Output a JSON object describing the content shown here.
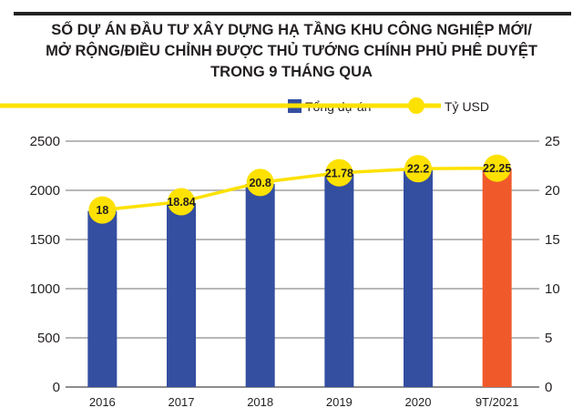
{
  "chart_data": {
    "type": "bar",
    "title_lines": [
      "SỐ DỰ ÁN ĐẦU TƯ XÂY DỰNG HẠ TẦNG KHU CÔNG NGHIỆP MỚI/",
      "MỞ RỘNG/ĐIỀU CHỈNH ĐƯỢC THỦ TƯỚNG CHÍNH PHỦ PHÊ DUYỆT",
      "TRONG 9 THÁNG QUA"
    ],
    "categories": [
      "2016",
      "2017",
      "2018",
      "2019",
      "2020",
      "9T/2021"
    ],
    "series": [
      {
        "name": "Tổng dự án",
        "type": "bar",
        "axis": "left",
        "values": [
          1790,
          1865,
          2065,
          2165,
          2205,
          2220
        ],
        "color": "#344ea0",
        "highlight_color": "#f05a2b",
        "highlight_index": 5
      },
      {
        "name": "Tỷ USD",
        "type": "line",
        "axis": "right",
        "values": [
          18,
          18.84,
          20.8,
          21.78,
          22.2,
          22.25
        ],
        "labels": [
          "18",
          "18.84",
          "20.8",
          "21.78",
          "22.2",
          "22.25"
        ],
        "color": "#fde100"
      }
    ],
    "ylim_left": [
      0,
      2500
    ],
    "yticks_left": [
      "0",
      "500",
      "1000",
      "1500",
      "2000",
      "2500"
    ],
    "ylim_right": [
      0,
      25
    ],
    "yticks_right": [
      "0",
      "5",
      "10",
      "15",
      "20",
      "25"
    ],
    "grid": true,
    "legend": "top-right"
  }
}
